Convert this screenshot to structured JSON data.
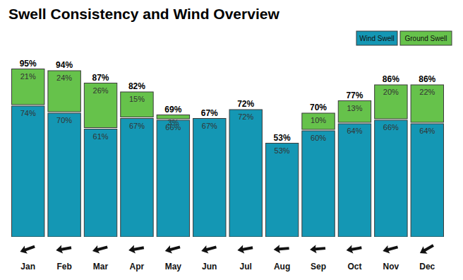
{
  "chart_data": {
    "type": "bar",
    "title": "Swell Consistency and Wind Overview",
    "stacked": true,
    "data_labels": true,
    "tick_labels": "x",
    "grid": false,
    "legend": "top-right",
    "categories": [
      "Jan",
      "Feb",
      "Mar",
      "Apr",
      "May",
      "Jun",
      "Jul",
      "Aug",
      "Sep",
      "Oct",
      "Nov",
      "Dec"
    ],
    "series": [
      {
        "name": "Wind Swell",
        "color": "#1497b4",
        "values": [
          74,
          70,
          61,
          67,
          66,
          67,
          72,
          53,
          60,
          64,
          66,
          64
        ],
        "value_labels": [
          "74%",
          "70%",
          "61%",
          "67%",
          "66%",
          "67%",
          "72%",
          "53%",
          "60%",
          "64%",
          "66%",
          "64%"
        ]
      },
      {
        "name": "Ground Swell",
        "color": "#66c24b",
        "values": [
          21,
          24,
          26,
          15,
          3,
          0,
          0,
          0,
          10,
          13,
          20,
          22
        ],
        "value_labels": [
          "21%",
          "24%",
          "26%",
          "15%",
          "3%",
          null,
          null,
          null,
          "10%",
          "13%",
          "20%",
          "22%"
        ]
      }
    ],
    "totals": [
      95,
      94,
      87,
      82,
      69,
      67,
      72,
      53,
      70,
      77,
      86,
      86
    ],
    "total_labels": [
      "95%",
      "94%",
      "87%",
      "82%",
      "69%",
      "67%",
      "72%",
      "53%",
      "70%",
      "77%",
      "86%",
      "86%"
    ],
    "wind_direction": [
      20,
      10,
      15,
      10,
      15,
      15,
      10,
      5,
      5,
      10,
      15,
      30
    ],
    "ylim": [
      0,
      100
    ]
  }
}
